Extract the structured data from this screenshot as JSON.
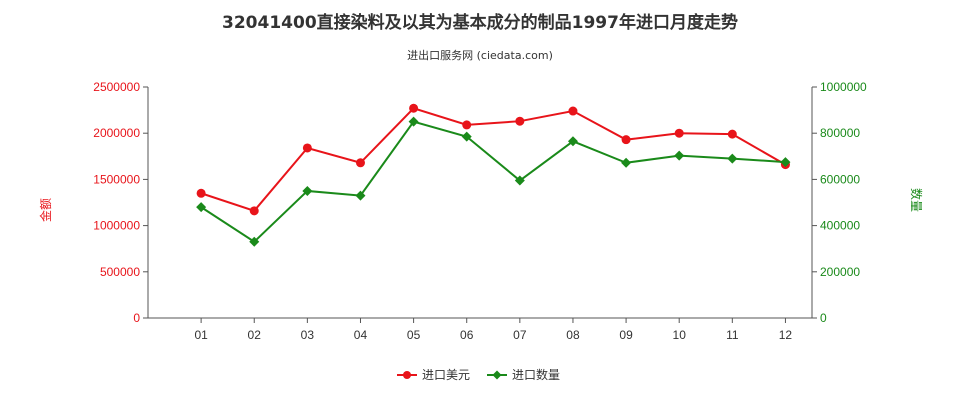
{
  "chart_data": {
    "type": "line",
    "title": "32041400直接染料及以其为基本成分的制品1997年进口月度走势",
    "subtitle": "进出口服务网 (ciedata.com)",
    "categories": [
      "01",
      "02",
      "03",
      "04",
      "05",
      "06",
      "07",
      "08",
      "09",
      "10",
      "11",
      "12"
    ],
    "y_left": {
      "label": "金额",
      "range": [
        0,
        2500000
      ],
      "ticks": [
        "0",
        "500000",
        "1000000",
        "1500000",
        "2000000",
        "2500000"
      ],
      "color": "#e8141a"
    },
    "y_right": {
      "label": "数量",
      "range": [
        0,
        1000000
      ],
      "ticks": [
        "0",
        "200000",
        "400000",
        "600000",
        "800000",
        "1000000"
      ],
      "color": "#1a8a1a"
    },
    "series": [
      {
        "name": "进口美元",
        "axis": "left",
        "color": "#e8141a",
        "marker": "circle",
        "values": [
          1350000,
          1160000,
          1840000,
          1680000,
          2270000,
          2090000,
          2130000,
          2240000,
          1930000,
          2000000,
          1990000,
          1660000
        ]
      },
      {
        "name": "进口数量",
        "axis": "right",
        "color": "#1a8a1a",
        "marker": "diamond",
        "values": [
          480000,
          330000,
          550000,
          530000,
          850000,
          785000,
          595000,
          765000,
          672000,
          703000,
          690000,
          675000
        ]
      }
    ],
    "legend_position": "bottom-center",
    "grid": false
  }
}
